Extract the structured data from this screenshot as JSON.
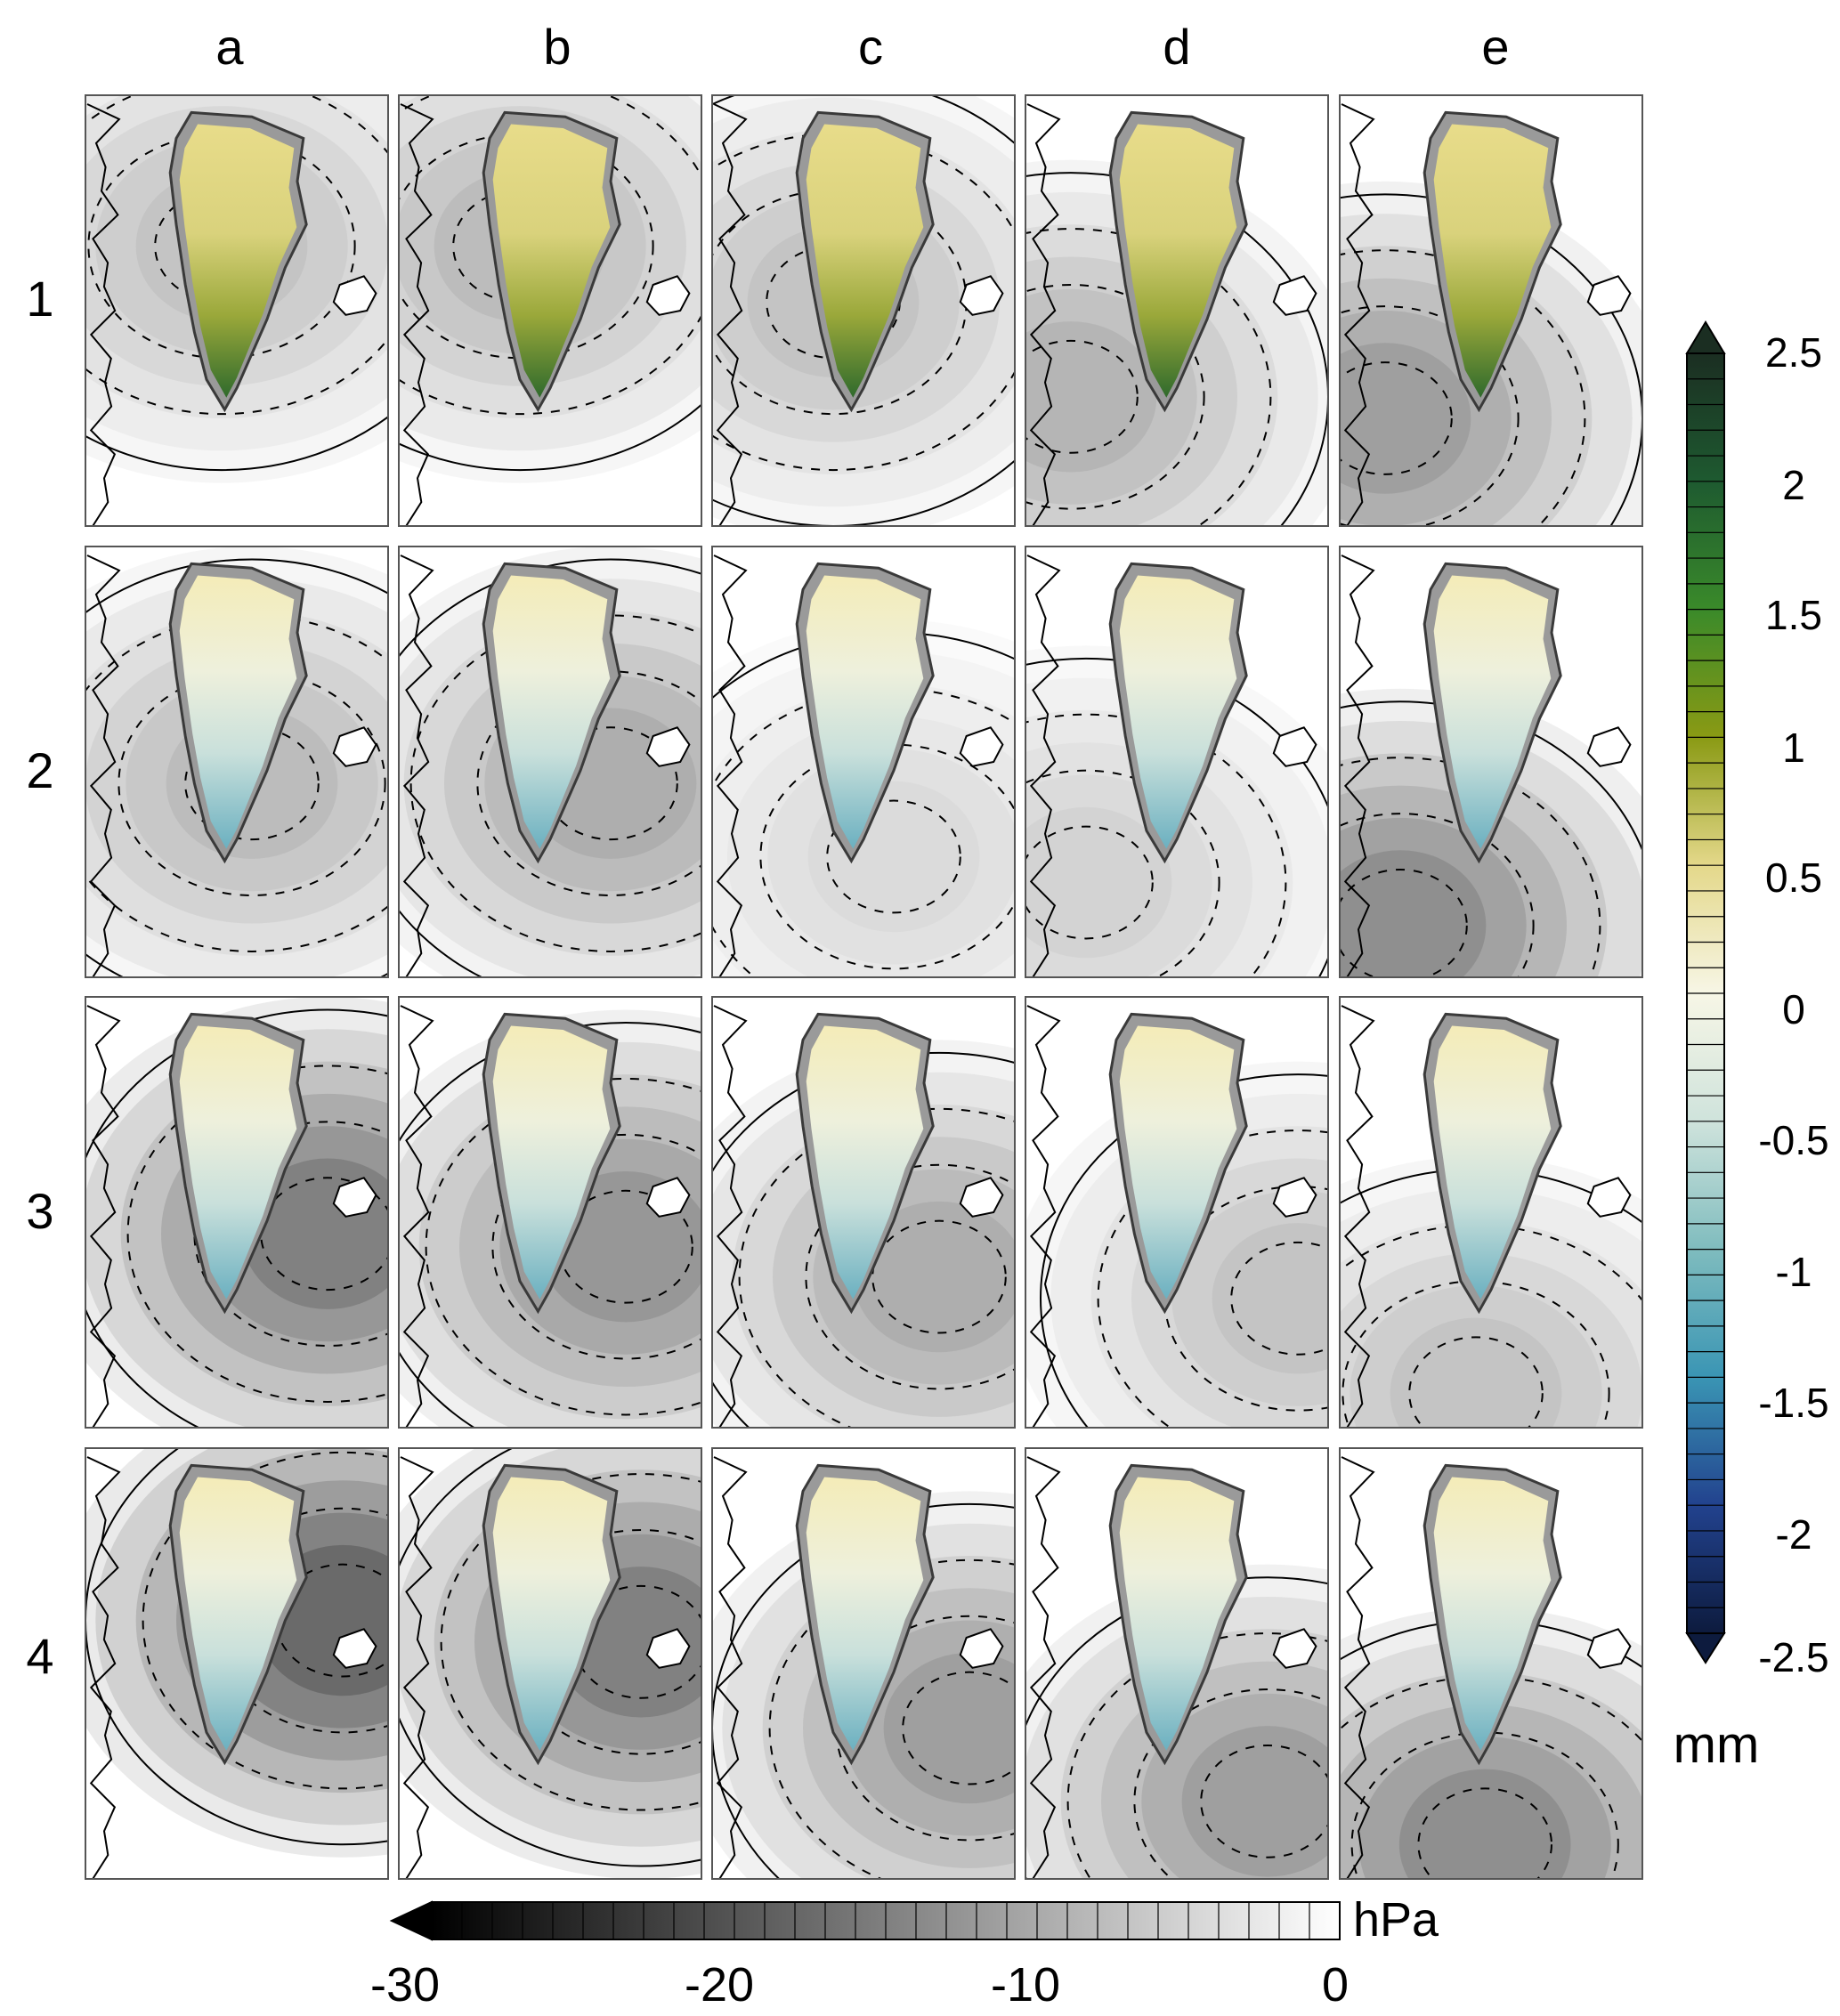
{
  "figure": {
    "column_labels": [
      "a",
      "b",
      "c",
      "d",
      "e"
    ],
    "row_labels": [
      "1",
      "2",
      "3",
      "4"
    ]
  },
  "chart_data": {
    "type": "heatmap",
    "grid": {
      "rows": [
        "1",
        "2",
        "3",
        "4"
      ],
      "columns": [
        "a",
        "b",
        "c",
        "d",
        "e"
      ]
    },
    "panels": [
      {
        "row": "1",
        "col": "a",
        "low_strength": 8
      },
      {
        "row": "1",
        "col": "b",
        "low_strength": 9
      },
      {
        "row": "1",
        "col": "c",
        "low_strength": 8
      },
      {
        "row": "1",
        "col": "d",
        "low_strength": 10
      },
      {
        "row": "1",
        "col": "e",
        "low_strength": 13
      },
      {
        "row": "2",
        "col": "a",
        "low_strength": 9
      },
      {
        "row": "2",
        "col": "b",
        "low_strength": 11
      },
      {
        "row": "2",
        "col": "c",
        "low_strength": 5
      },
      {
        "row": "2",
        "col": "d",
        "low_strength": 6
      },
      {
        "row": "2",
        "col": "e",
        "low_strength": 15
      },
      {
        "row": "3",
        "col": "a",
        "low_strength": 17
      },
      {
        "row": "3",
        "col": "b",
        "low_strength": 14
      },
      {
        "row": "3",
        "col": "c",
        "low_strength": 11
      },
      {
        "row": "3",
        "col": "d",
        "low_strength": 8
      },
      {
        "row": "3",
        "col": "e",
        "low_strength": 8
      },
      {
        "row": "4",
        "col": "a",
        "low_strength": 20
      },
      {
        "row": "4",
        "col": "b",
        "low_strength": 17
      },
      {
        "row": "4",
        "col": "c",
        "low_strength": 13
      },
      {
        "row": "4",
        "col": "d",
        "low_strength": 13
      },
      {
        "row": "4",
        "col": "e",
        "low_strength": 15
      }
    ],
    "colorbar_precip": {
      "unit": "mm",
      "min": -2.5,
      "max": 2.5,
      "step": 0.1,
      "tick_labels": [
        "2.5",
        "2",
        "1.5",
        "1",
        "0.5",
        "0",
        "-0.5",
        "-1",
        "-1.5",
        "-2",
        "-2.5"
      ],
      "colors": [
        "#1b2e22",
        "#1e5a30",
        "#3a8a2a",
        "#8a9a14",
        "#e4d88a",
        "#f7f6e6",
        "#cfe3dc",
        "#7fbcbe",
        "#3a95b4",
        "#22428e",
        "#0d1b3e"
      ]
    },
    "colorbar_pressure": {
      "unit": "hPa",
      "min": -30,
      "max": 0,
      "tick_labels": [
        "-30",
        "-20",
        "-10",
        "0"
      ],
      "tick_values": [
        -30,
        -20,
        -10,
        0
      ]
    }
  }
}
